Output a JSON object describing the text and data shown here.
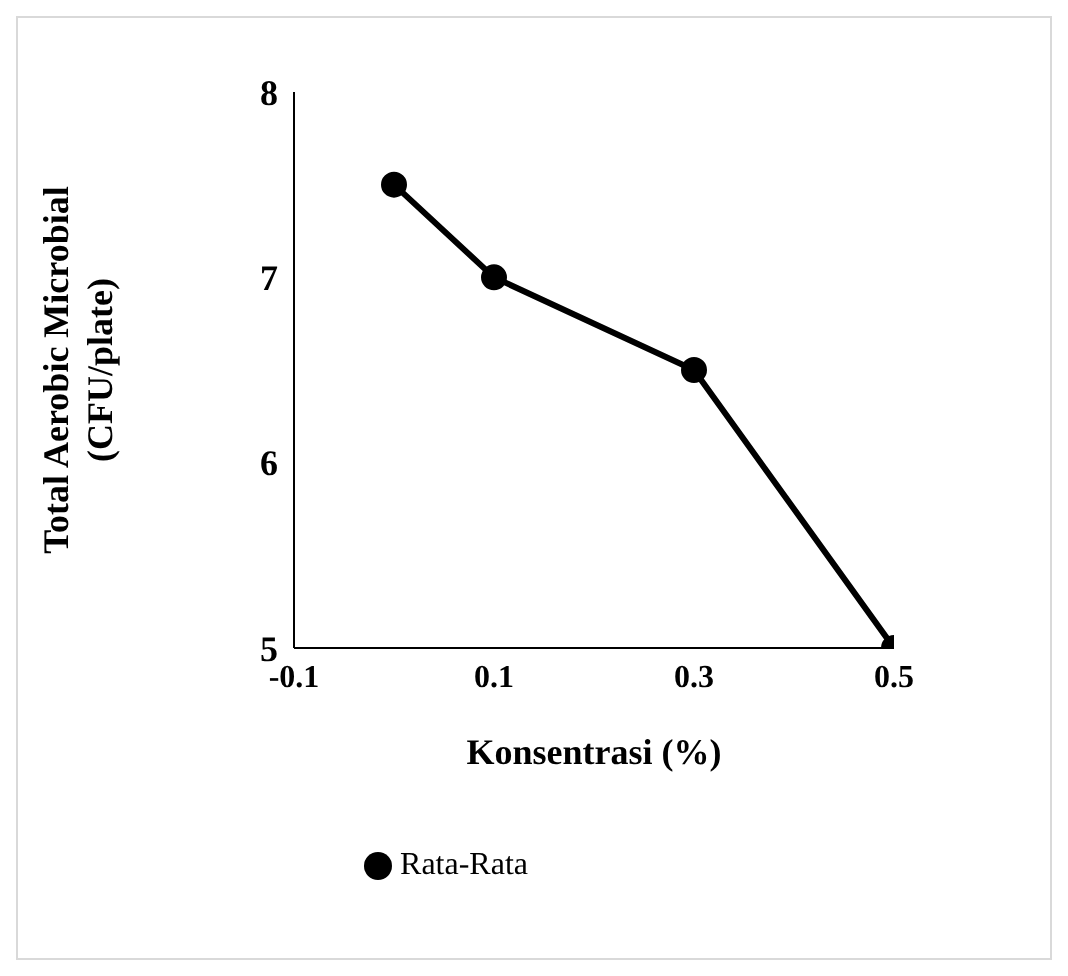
{
  "chart_data": {
    "type": "line",
    "xlabel": "Konsentrasi (%)",
    "ylabel": "Total Aerobic Microbial\n(CFU/plate)",
    "x": [
      0,
      0.1,
      0.3,
      0.5
    ],
    "series": [
      {
        "name": "Rata-Rata",
        "color": "#000000",
        "values": [
          7.5,
          7,
          6.5,
          5
        ]
      }
    ],
    "xlim": [
      -0.1,
      0.5
    ],
    "xticks": [
      -0.1,
      0.1,
      0.3,
      0.5
    ],
    "ylim": [
      5,
      8
    ],
    "yticks": [
      5,
      6,
      7,
      8
    ],
    "grid": false,
    "legend": "bottom",
    "marker": "circle",
    "line_style": "solid"
  }
}
